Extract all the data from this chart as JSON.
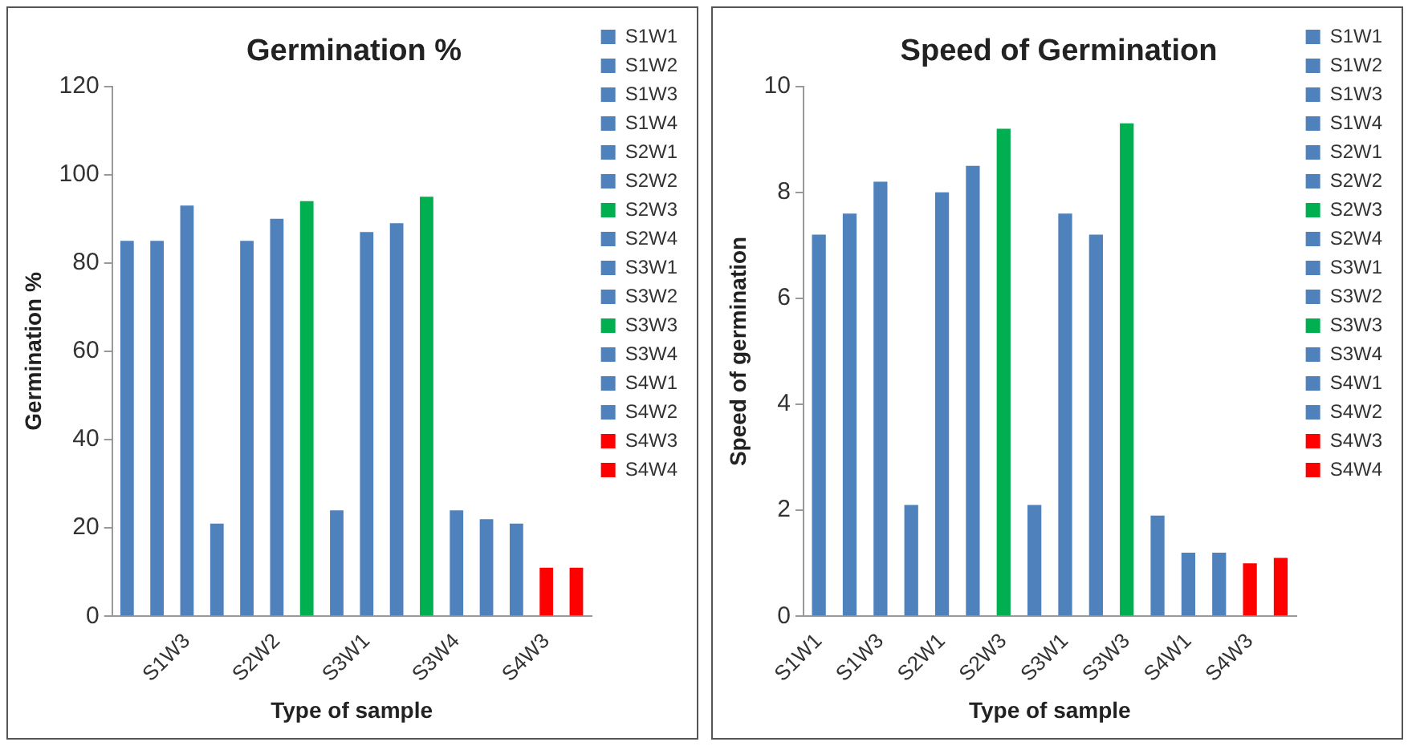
{
  "chart_data": [
    {
      "type": "bar",
      "title": "Germination %",
      "xlabel": "Type of sample",
      "ylabel": "Germination %",
      "categories": [
        null,
        null,
        "S1W3",
        null,
        null,
        "S2W2",
        null,
        null,
        "S3W1",
        null,
        null,
        "S3W4",
        null,
        null,
        "S4W3",
        null
      ],
      "grid": false,
      "legend": "right",
      "ylim": [
        0,
        120
      ],
      "yticks": [
        0,
        20,
        40,
        60,
        80,
        100,
        120
      ],
      "series": [
        {
          "name": "S1W1",
          "color": "#4f81bd",
          "values": [
            85,
            null,
            null,
            null,
            null,
            null,
            null,
            null,
            null,
            null,
            null,
            null,
            null,
            null,
            null,
            null
          ]
        },
        {
          "name": "S1W2",
          "color": "#4f81bd",
          "values": [
            null,
            85,
            null,
            null,
            null,
            null,
            null,
            null,
            null,
            null,
            null,
            null,
            null,
            null,
            null,
            null
          ]
        },
        {
          "name": "S1W3",
          "color": "#4f81bd",
          "values": [
            null,
            null,
            93,
            null,
            null,
            null,
            null,
            null,
            null,
            null,
            null,
            null,
            null,
            null,
            null,
            null
          ]
        },
        {
          "name": "S1W4",
          "color": "#4f81bd",
          "values": [
            null,
            null,
            null,
            21,
            null,
            null,
            null,
            null,
            null,
            null,
            null,
            null,
            null,
            null,
            null,
            null
          ]
        },
        {
          "name": "S2W1",
          "color": "#4f81bd",
          "values": [
            null,
            null,
            null,
            null,
            85,
            null,
            null,
            null,
            null,
            null,
            null,
            null,
            null,
            null,
            null,
            null
          ]
        },
        {
          "name": "S2W2",
          "color": "#4f81bd",
          "values": [
            null,
            null,
            null,
            null,
            null,
            90,
            null,
            null,
            null,
            null,
            null,
            null,
            null,
            null,
            null,
            null
          ]
        },
        {
          "name": "S2W3",
          "color": "#00b050",
          "values": [
            null,
            null,
            null,
            null,
            null,
            null,
            94,
            null,
            null,
            null,
            null,
            null,
            null,
            null,
            null,
            null
          ]
        },
        {
          "name": "S2W4",
          "color": "#4f81bd",
          "values": [
            null,
            null,
            null,
            null,
            null,
            null,
            null,
            24,
            null,
            null,
            null,
            null,
            null,
            null,
            null,
            null
          ]
        },
        {
          "name": "S3W1",
          "color": "#4f81bd",
          "values": [
            null,
            null,
            null,
            null,
            null,
            null,
            null,
            null,
            87,
            null,
            null,
            null,
            null,
            null,
            null,
            null
          ]
        },
        {
          "name": "S3W2",
          "color": "#4f81bd",
          "values": [
            null,
            null,
            null,
            null,
            null,
            null,
            null,
            null,
            null,
            89,
            null,
            null,
            null,
            null,
            null,
            null
          ]
        },
        {
          "name": "S3W3",
          "color": "#00b050",
          "values": [
            null,
            null,
            null,
            null,
            null,
            null,
            null,
            null,
            null,
            null,
            95,
            null,
            null,
            null,
            null,
            null
          ]
        },
        {
          "name": "S3W4",
          "color": "#4f81bd",
          "values": [
            null,
            null,
            null,
            null,
            null,
            null,
            null,
            null,
            null,
            null,
            null,
            24,
            null,
            null,
            null,
            null
          ]
        },
        {
          "name": "S4W1",
          "color": "#4f81bd",
          "values": [
            null,
            null,
            null,
            null,
            null,
            null,
            null,
            null,
            null,
            null,
            null,
            null,
            22,
            null,
            null,
            null
          ]
        },
        {
          "name": "S4W2",
          "color": "#4f81bd",
          "values": [
            null,
            null,
            null,
            null,
            null,
            null,
            null,
            null,
            null,
            null,
            null,
            null,
            null,
            21,
            null,
            null
          ]
        },
        {
          "name": "S4W3",
          "color": "#ff0000",
          "values": [
            null,
            null,
            null,
            null,
            null,
            null,
            null,
            null,
            null,
            null,
            null,
            null,
            null,
            null,
            11,
            null
          ]
        },
        {
          "name": "S4W4",
          "color": "#ff0000",
          "values": [
            null,
            null,
            null,
            null,
            null,
            null,
            null,
            null,
            null,
            null,
            null,
            null,
            null,
            null,
            null,
            11
          ]
        }
      ]
    },
    {
      "type": "bar",
      "title": "Speed of Germination",
      "xlabel": "Type of sample",
      "ylabel": "Speed of germination",
      "categories": [
        "S1W1",
        null,
        "S1W3",
        null,
        "S2W1",
        null,
        "S2W3",
        null,
        "S3W1",
        null,
        "S3W3",
        null,
        "S4W1",
        null,
        "S4W3",
        null
      ],
      "grid": false,
      "legend": "right",
      "ylim": [
        0,
        10
      ],
      "yticks": [
        0,
        2,
        4,
        6,
        8,
        10
      ],
      "series": [
        {
          "name": "S1W1",
          "color": "#4f81bd",
          "values": [
            7.2,
            null,
            null,
            null,
            null,
            null,
            null,
            null,
            null,
            null,
            null,
            null,
            null,
            null,
            null,
            null
          ]
        },
        {
          "name": "S1W2",
          "color": "#4f81bd",
          "values": [
            null,
            7.6,
            null,
            null,
            null,
            null,
            null,
            null,
            null,
            null,
            null,
            null,
            null,
            null,
            null,
            null
          ]
        },
        {
          "name": "S1W3",
          "color": "#4f81bd",
          "values": [
            null,
            null,
            8.2,
            null,
            null,
            null,
            null,
            null,
            null,
            null,
            null,
            null,
            null,
            null,
            null,
            null
          ]
        },
        {
          "name": "S1W4",
          "color": "#4f81bd",
          "values": [
            null,
            null,
            null,
            2.1,
            null,
            null,
            null,
            null,
            null,
            null,
            null,
            null,
            null,
            null,
            null,
            null
          ]
        },
        {
          "name": "S2W1",
          "color": "#4f81bd",
          "values": [
            null,
            null,
            null,
            null,
            8.0,
            null,
            null,
            null,
            null,
            null,
            null,
            null,
            null,
            null,
            null,
            null
          ]
        },
        {
          "name": "S2W2",
          "color": "#4f81bd",
          "values": [
            null,
            null,
            null,
            null,
            null,
            8.5,
            null,
            null,
            null,
            null,
            null,
            null,
            null,
            null,
            null,
            null
          ]
        },
        {
          "name": "S2W3",
          "color": "#00b050",
          "values": [
            null,
            null,
            null,
            null,
            null,
            null,
            9.2,
            null,
            null,
            null,
            null,
            null,
            null,
            null,
            null,
            null
          ]
        },
        {
          "name": "S2W4",
          "color": "#4f81bd",
          "values": [
            null,
            null,
            null,
            null,
            null,
            null,
            null,
            2.1,
            null,
            null,
            null,
            null,
            null,
            null,
            null,
            null
          ]
        },
        {
          "name": "S3W1",
          "color": "#4f81bd",
          "values": [
            null,
            null,
            null,
            null,
            null,
            null,
            null,
            null,
            7.6,
            null,
            null,
            null,
            null,
            null,
            null,
            null
          ]
        },
        {
          "name": "S3W2",
          "color": "#4f81bd",
          "values": [
            null,
            null,
            null,
            null,
            null,
            null,
            null,
            null,
            null,
            7.2,
            null,
            null,
            null,
            null,
            null,
            null
          ]
        },
        {
          "name": "S3W3",
          "color": "#00b050",
          "values": [
            null,
            null,
            null,
            null,
            null,
            null,
            null,
            null,
            null,
            null,
            9.3,
            null,
            null,
            null,
            null,
            null
          ]
        },
        {
          "name": "S3W4",
          "color": "#4f81bd",
          "values": [
            null,
            null,
            null,
            null,
            null,
            null,
            null,
            null,
            null,
            null,
            null,
            1.9,
            null,
            null,
            null,
            null
          ]
        },
        {
          "name": "S4W1",
          "color": "#4f81bd",
          "values": [
            null,
            null,
            null,
            null,
            null,
            null,
            null,
            null,
            null,
            null,
            null,
            null,
            1.2,
            null,
            null,
            null
          ]
        },
        {
          "name": "S4W2",
          "color": "#4f81bd",
          "values": [
            null,
            null,
            null,
            null,
            null,
            null,
            null,
            null,
            null,
            null,
            null,
            null,
            null,
            1.2,
            null,
            null
          ]
        },
        {
          "name": "S4W3",
          "color": "#ff0000",
          "values": [
            null,
            null,
            null,
            null,
            null,
            null,
            null,
            null,
            null,
            null,
            null,
            null,
            null,
            null,
            1.0,
            null
          ]
        },
        {
          "name": "S4W4",
          "color": "#ff0000",
          "values": [
            null,
            null,
            null,
            null,
            null,
            null,
            null,
            null,
            null,
            null,
            null,
            null,
            null,
            null,
            null,
            1.1
          ]
        }
      ]
    }
  ]
}
